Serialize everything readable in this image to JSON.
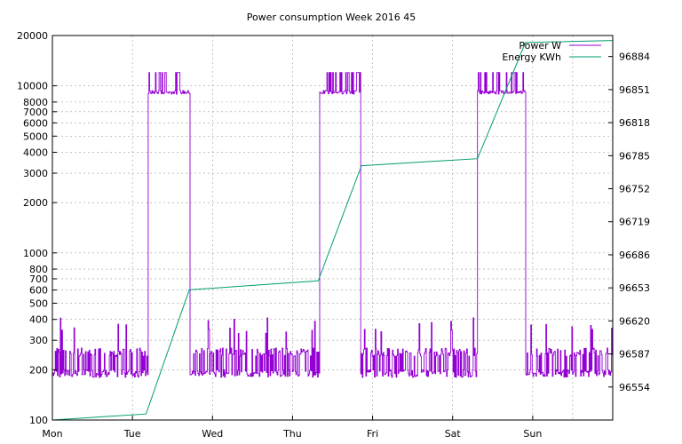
{
  "chart_data": {
    "type": "line",
    "title": "Power consumption Week 2016 45",
    "xlabel": "",
    "ylabel": "",
    "x_unit": "days since Monday 00:00",
    "xlim": [
      0,
      7
    ],
    "x_ticks": [
      {
        "x": 0,
        "label": "Mon"
      },
      {
        "x": 1,
        "label": "Tue"
      },
      {
        "x": 2,
        "label": "Wed"
      },
      {
        "x": 3,
        "label": "Thu"
      },
      {
        "x": 4,
        "label": "Fri"
      },
      {
        "x": 5,
        "label": "Sat"
      },
      {
        "x": 6,
        "label": "Sun"
      }
    ],
    "y_left": {
      "scale": "log",
      "range": [
        100,
        20000
      ],
      "ticks": [
        {
          "value": 100,
          "label": "100"
        },
        {
          "value": 200,
          "label": "200"
        },
        {
          "value": 300,
          "label": "300"
        },
        {
          "value": 400,
          "label": "400"
        },
        {
          "value": 500,
          "label": "500"
        },
        {
          "value": 600,
          "label": "600"
        },
        {
          "value": 700,
          "label": "700"
        },
        {
          "value": 800,
          "label": "800"
        },
        {
          "value": 1000,
          "label": "1000"
        },
        {
          "value": 2000,
          "label": "2000"
        },
        {
          "value": 3000,
          "label": "3000"
        },
        {
          "value": 4000,
          "label": "4000"
        },
        {
          "value": 5000,
          "label": "5000"
        },
        {
          "value": 6000,
          "label": "6000"
        },
        {
          "value": 7000,
          "label": "7000"
        },
        {
          "value": 8000,
          "label": "8000"
        },
        {
          "value": 10000,
          "label": "10000"
        },
        {
          "value": 20000,
          "label": "20000"
        }
      ]
    },
    "y_right": {
      "scale": "linear",
      "range": [
        96521,
        96905
      ],
      "ticks": [
        {
          "value": 96554,
          "label": "96554"
        },
        {
          "value": 96587,
          "label": "96587"
        },
        {
          "value": 96620,
          "label": "96620"
        },
        {
          "value": 96653,
          "label": "96653"
        },
        {
          "value": 96686,
          "label": "96686"
        },
        {
          "value": 96719,
          "label": "96719"
        },
        {
          "value": 96752,
          "label": "96752"
        },
        {
          "value": 96785,
          "label": "96785"
        },
        {
          "value": 96818,
          "label": "96818"
        },
        {
          "value": 96851,
          "label": "96851"
        },
        {
          "value": 96884,
          "label": "96884"
        }
      ]
    },
    "grid": true,
    "legend": "top-right",
    "series": [
      {
        "name": "Power W",
        "axis": "left",
        "color": "#9400d3",
        "style": "step",
        "base_low": [
          180,
          270
        ],
        "high_periods": [
          {
            "start": 1.19,
            "end": 1.71,
            "level": 9200,
            "peak": 12000
          },
          {
            "start": 3.33,
            "end": 3.85,
            "level": 9200,
            "peak": 12000
          },
          {
            "start": 5.31,
            "end": 5.91,
            "level": 9200,
            "peak": 12000
          }
        ]
      },
      {
        "name": "Energy KWh",
        "axis": "right",
        "color": "#009e73",
        "style": "line",
        "x": [
          0,
          1.17,
          1.71,
          3.32,
          3.86,
          5.31,
          5.91,
          7
        ],
        "y": [
          96521,
          96527,
          96651,
          96660,
          96775,
          96782,
          96898,
          96900
        ]
      }
    ]
  }
}
